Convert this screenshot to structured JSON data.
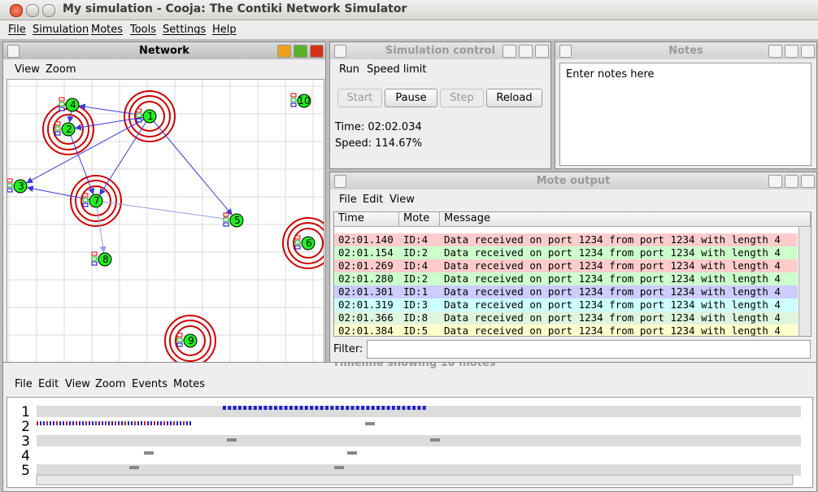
{
  "window": {
    "title": "My simulation - Cooja: The Contiki Network Simulator"
  },
  "menu": [
    "File",
    "Simulation",
    "Motes",
    "Tools",
    "Settings",
    "Help"
  ],
  "network": {
    "title": "Network",
    "menu": [
      "View",
      "Zoom"
    ],
    "nodes": [
      "1",
      "2",
      "3",
      "4",
      "5",
      "6",
      "7",
      "8",
      "9",
      "10"
    ]
  },
  "simulation_control": {
    "title": "Simulation control",
    "menu": [
      "Run",
      "Speed limit"
    ],
    "buttons": [
      "Start",
      "Pause",
      "Step",
      "Reload"
    ],
    "time": "Time: 02:02.034",
    "speed": "Speed: 114.67%"
  },
  "notes": {
    "title": "Notes",
    "text": "Enter notes here"
  },
  "mote_output": {
    "title": "Mote output",
    "menu": [
      "File",
      "Edit",
      "View"
    ],
    "columns": [
      "Time",
      "Mote",
      "Message"
    ],
    "rows": [
      [
        "02:01.140",
        "ID:4",
        "Data received on port 1234 from port 1234 with length 4"
      ],
      [
        "02:01.154",
        "ID:2",
        "Data received on port 1234 from port 1234 with length 4"
      ],
      [
        "02:01.269",
        "ID:4",
        "Data received on port 1234 from port 1234 with length 4"
      ],
      [
        "02:01.280",
        "ID:2",
        "Data received on port 1234 from port 1234 with length 4"
      ],
      [
        "02:01.301",
        "ID:1",
        "Data received on port 1234 from port 1234 with length 4"
      ],
      [
        "02:01.319",
        "ID:3",
        "Data received on port 1234 from port 1234 with length 4"
      ],
      [
        "02:01.366",
        "ID:8",
        "Data received on port 1234 from port 1234 with length 4"
      ],
      [
        "02:01.384",
        "ID:5",
        "Data received on port 1234 from port 1234 with length 4"
      ]
    ],
    "filter_label": "Filter:"
  },
  "timeline": {
    "title": "Timeline showing 10 motes",
    "menu": [
      "File",
      "Edit",
      "View",
      "Zoom",
      "Events",
      "Motes"
    ],
    "rows": [
      "1",
      "2",
      "3",
      "4",
      "5"
    ]
  }
}
